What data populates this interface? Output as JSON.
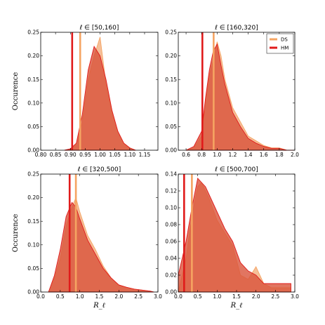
{
  "colors": {
    "ds": "#f5a462",
    "hm": "#e01b1b",
    "ds_fill": "#f1a977",
    "hm_fill": "#d9523a"
  },
  "legend": {
    "ds": "DS",
    "hm": "HM",
    "placement": "top-right of upper-right panel"
  },
  "labels": {
    "ylabel": "Occurence",
    "xlabel": "R_ℓ"
  },
  "chart_data": [
    {
      "type": "area",
      "title": "ℓ ∈ [50,160]",
      "xlim": [
        0.8,
        1.195
      ],
      "ylim": [
        0,
        0.25
      ],
      "xticks": [
        "0.80",
        "0.85",
        "0.90",
        "0.95",
        "1.00",
        "1.05",
        "1.10",
        "1.15"
      ],
      "xtick_vals": [
        0.8,
        0.85,
        0.9,
        0.95,
        1.0,
        1.05,
        1.1,
        1.15
      ],
      "yticks": [
        "0.00",
        "0.05",
        "0.10",
        "0.15",
        "0.20",
        "0.25"
      ],
      "ytick_vals": [
        0,
        0.05,
        0.1,
        0.15,
        0.2,
        0.25
      ],
      "show_ylabel": true,
      "show_xlabel": false,
      "vlines": {
        "hm": 0.906,
        "ds": 0.933
      },
      "series": [
        {
          "name": "DS",
          "x": [
            0.88,
            0.9,
            0.92,
            0.94,
            0.96,
            0.98,
            1.0,
            1.02,
            1.04,
            1.06,
            1.08,
            1.1,
            1.12
          ],
          "y": [
            0.0,
            0.002,
            0.012,
            0.06,
            0.15,
            0.2,
            0.24,
            0.14,
            0.08,
            0.04,
            0.015,
            0.005,
            0.0
          ]
        },
        {
          "name": "HM",
          "x": [
            0.88,
            0.9,
            0.92,
            0.94,
            0.96,
            0.98,
            1.0,
            1.02,
            1.04,
            1.06,
            1.08,
            1.1,
            1.12
          ],
          "y": [
            0.0,
            0.003,
            0.015,
            0.075,
            0.17,
            0.22,
            0.2,
            0.15,
            0.085,
            0.04,
            0.015,
            0.005,
            0.0
          ]
        }
      ]
    },
    {
      "type": "area",
      "title": "ℓ ∈ [160,320]",
      "xlim": [
        0.5,
        2.0
      ],
      "ylim": [
        0,
        0.25
      ],
      "xticks": [
        "0.6",
        "0.8",
        "1.0",
        "1.2",
        "1.4",
        "1.6",
        "1.8",
        "2.0"
      ],
      "xtick_vals": [
        0.6,
        0.8,
        1.0,
        1.2,
        1.4,
        1.6,
        1.8,
        2.0
      ],
      "yticks": [
        "0.00",
        "0.05",
        "0.10",
        "0.15",
        "0.20",
        "0.25"
      ],
      "ytick_vals": [
        0,
        0.05,
        0.1,
        0.15,
        0.2,
        0.25
      ],
      "show_ylabel": false,
      "show_xlabel": false,
      "vlines": {
        "hm": 0.81,
        "ds": 0.955
      },
      "series": [
        {
          "name": "DS",
          "x": [
            0.6,
            0.7,
            0.8,
            0.85,
            0.9,
            0.95,
            1.0,
            1.05,
            1.1,
            1.2,
            1.3,
            1.4,
            1.5,
            1.6,
            1.7,
            1.8,
            1.9,
            2.0
          ],
          "y": [
            0.0,
            0.005,
            0.03,
            0.1,
            0.16,
            0.19,
            0.23,
            0.2,
            0.15,
            0.09,
            0.06,
            0.03,
            0.02,
            0.01,
            0.005,
            0.005,
            0.0,
            0.0
          ]
        },
        {
          "name": "HM",
          "x": [
            0.6,
            0.7,
            0.8,
            0.85,
            0.9,
            0.95,
            1.0,
            1.05,
            1.1,
            1.2,
            1.3,
            1.4,
            1.5,
            1.6,
            1.7,
            1.8,
            1.9,
            2.0
          ],
          "y": [
            0.0,
            0.008,
            0.04,
            0.11,
            0.17,
            0.21,
            0.225,
            0.18,
            0.14,
            0.08,
            0.05,
            0.025,
            0.015,
            0.008,
            0.004,
            0.004,
            0.0,
            0.0
          ]
        }
      ]
    },
    {
      "type": "area",
      "title": "ℓ ∈ [320,500]",
      "xlim": [
        0.0,
        3.0
      ],
      "ylim": [
        0,
        0.25
      ],
      "xticks": [
        "0.0",
        "0.5",
        "1.0",
        "1.5",
        "2.0",
        "2.5",
        "3.0"
      ],
      "xtick_vals": [
        0.0,
        0.5,
        1.0,
        1.5,
        2.0,
        2.5,
        3.0
      ],
      "yticks": [
        "0.00",
        "0.05",
        "0.10",
        "0.15",
        "0.20",
        "0.25"
      ],
      "ytick_vals": [
        0,
        0.05,
        0.1,
        0.15,
        0.2,
        0.25
      ],
      "show_ylabel": true,
      "show_xlabel": true,
      "vlines": {
        "hm": 0.74,
        "ds": 0.9
      },
      "series": [
        {
          "name": "DS",
          "x": [
            0.2,
            0.35,
            0.5,
            0.65,
            0.8,
            0.9,
            1.0,
            1.2,
            1.4,
            1.6,
            1.8,
            2.0,
            2.2,
            2.4,
            2.6,
            2.8,
            2.9
          ],
          "y": [
            0.0,
            0.03,
            0.07,
            0.14,
            0.18,
            0.2,
            0.17,
            0.12,
            0.09,
            0.055,
            0.03,
            0.015,
            0.01,
            0.006,
            0.004,
            0.002,
            0.0
          ]
        },
        {
          "name": "HM",
          "x": [
            0.2,
            0.35,
            0.5,
            0.65,
            0.8,
            0.9,
            1.0,
            1.2,
            1.4,
            1.6,
            1.8,
            2.0,
            2.2,
            2.4,
            2.6,
            2.8,
            2.9
          ],
          "y": [
            0.0,
            0.035,
            0.09,
            0.16,
            0.19,
            0.18,
            0.155,
            0.11,
            0.08,
            0.05,
            0.03,
            0.015,
            0.01,
            0.006,
            0.004,
            0.002,
            0.0
          ]
        }
      ]
    },
    {
      "type": "area",
      "title": "ℓ ∈ [500,700]",
      "xlim": [
        0.0,
        3.0
      ],
      "ylim": [
        0,
        0.14
      ],
      "xticks": [
        "0.0",
        "0.5",
        "1.0",
        "1.5",
        "2.0",
        "2.5",
        "3.0"
      ],
      "xtick_vals": [
        0.0,
        0.5,
        1.0,
        1.5,
        2.0,
        2.5,
        3.0
      ],
      "yticks": [
        "0.00",
        "0.02",
        "0.04",
        "0.06",
        "0.08",
        "0.10",
        "0.12",
        "0.14"
      ],
      "ytick_vals": [
        0,
        0.02,
        0.04,
        0.06,
        0.08,
        0.1,
        0.12,
        0.14
      ],
      "show_ylabel": false,
      "show_xlabel": true,
      "vlines": {
        "hm": 0.15,
        "ds": 0.35
      },
      "series": [
        {
          "name": "DS",
          "x": [
            0.0,
            0.2,
            0.35,
            0.5,
            0.6,
            0.7,
            0.8,
            1.0,
            1.2,
            1.4,
            1.6,
            1.8,
            2.0,
            2.2,
            2.4,
            2.6,
            2.9
          ],
          "y": [
            0.0,
            0.04,
            0.09,
            0.125,
            0.13,
            0.12,
            0.11,
            0.085,
            0.07,
            0.055,
            0.02,
            0.015,
            0.03,
            0.01,
            0.005,
            0.005,
            0.005
          ]
        },
        {
          "name": "HM",
          "x": [
            0.0,
            0.2,
            0.35,
            0.5,
            0.6,
            0.7,
            0.8,
            1.0,
            1.2,
            1.4,
            1.6,
            1.8,
            2.0,
            2.2,
            2.4,
            2.6,
            2.9
          ],
          "y": [
            0.02,
            0.06,
            0.1,
            0.135,
            0.13,
            0.125,
            0.115,
            0.095,
            0.075,
            0.06,
            0.035,
            0.025,
            0.02,
            0.01,
            0.01,
            0.01,
            0.01
          ]
        }
      ]
    }
  ]
}
